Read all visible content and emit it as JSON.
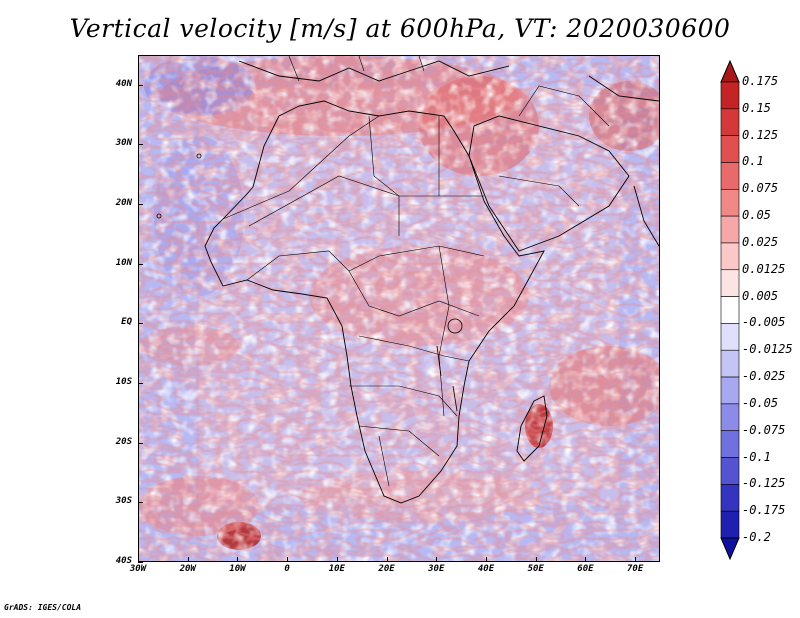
{
  "title": "Vertical velocity [m/s] at 600hPa, VT: 2020030600",
  "map": {
    "lon_labels": [
      "30W",
      "20W",
      "10W",
      "0",
      "10E",
      "20E",
      "30E",
      "40E",
      "50E",
      "60E",
      "70E"
    ],
    "lat_labels": [
      "40N",
      "30N",
      "20N",
      "10N",
      "EQ",
      "10S",
      "20S",
      "30S",
      "40S"
    ],
    "lon_range": [
      -30,
      75
    ],
    "lat_range": [
      -40,
      45
    ]
  },
  "colorbar": {
    "labels": [
      "0.175",
      "0.15",
      "0.125",
      "0.1",
      "0.075",
      "0.05",
      "0.025",
      "0.0125",
      "0.005",
      "-0.005",
      "-0.0125",
      "-0.025",
      "-0.05",
      "-0.075",
      "-0.1",
      "-0.125",
      "-0.175",
      "-0.2"
    ],
    "colors": [
      "#a81818",
      "#c42424",
      "#d43838",
      "#e05050",
      "#e86a6a",
      "#f08888",
      "#f6a8a8",
      "#fac8c8",
      "#fde4e4",
      "#ffffff",
      "#e0e0fc",
      "#c4c4f6",
      "#a8a8f0",
      "#8c8ce8",
      "#7070de",
      "#5454d0",
      "#3434c0",
      "#2020b0",
      "#1010a0"
    ]
  },
  "footer": "GrADS: IGES/COLA"
}
